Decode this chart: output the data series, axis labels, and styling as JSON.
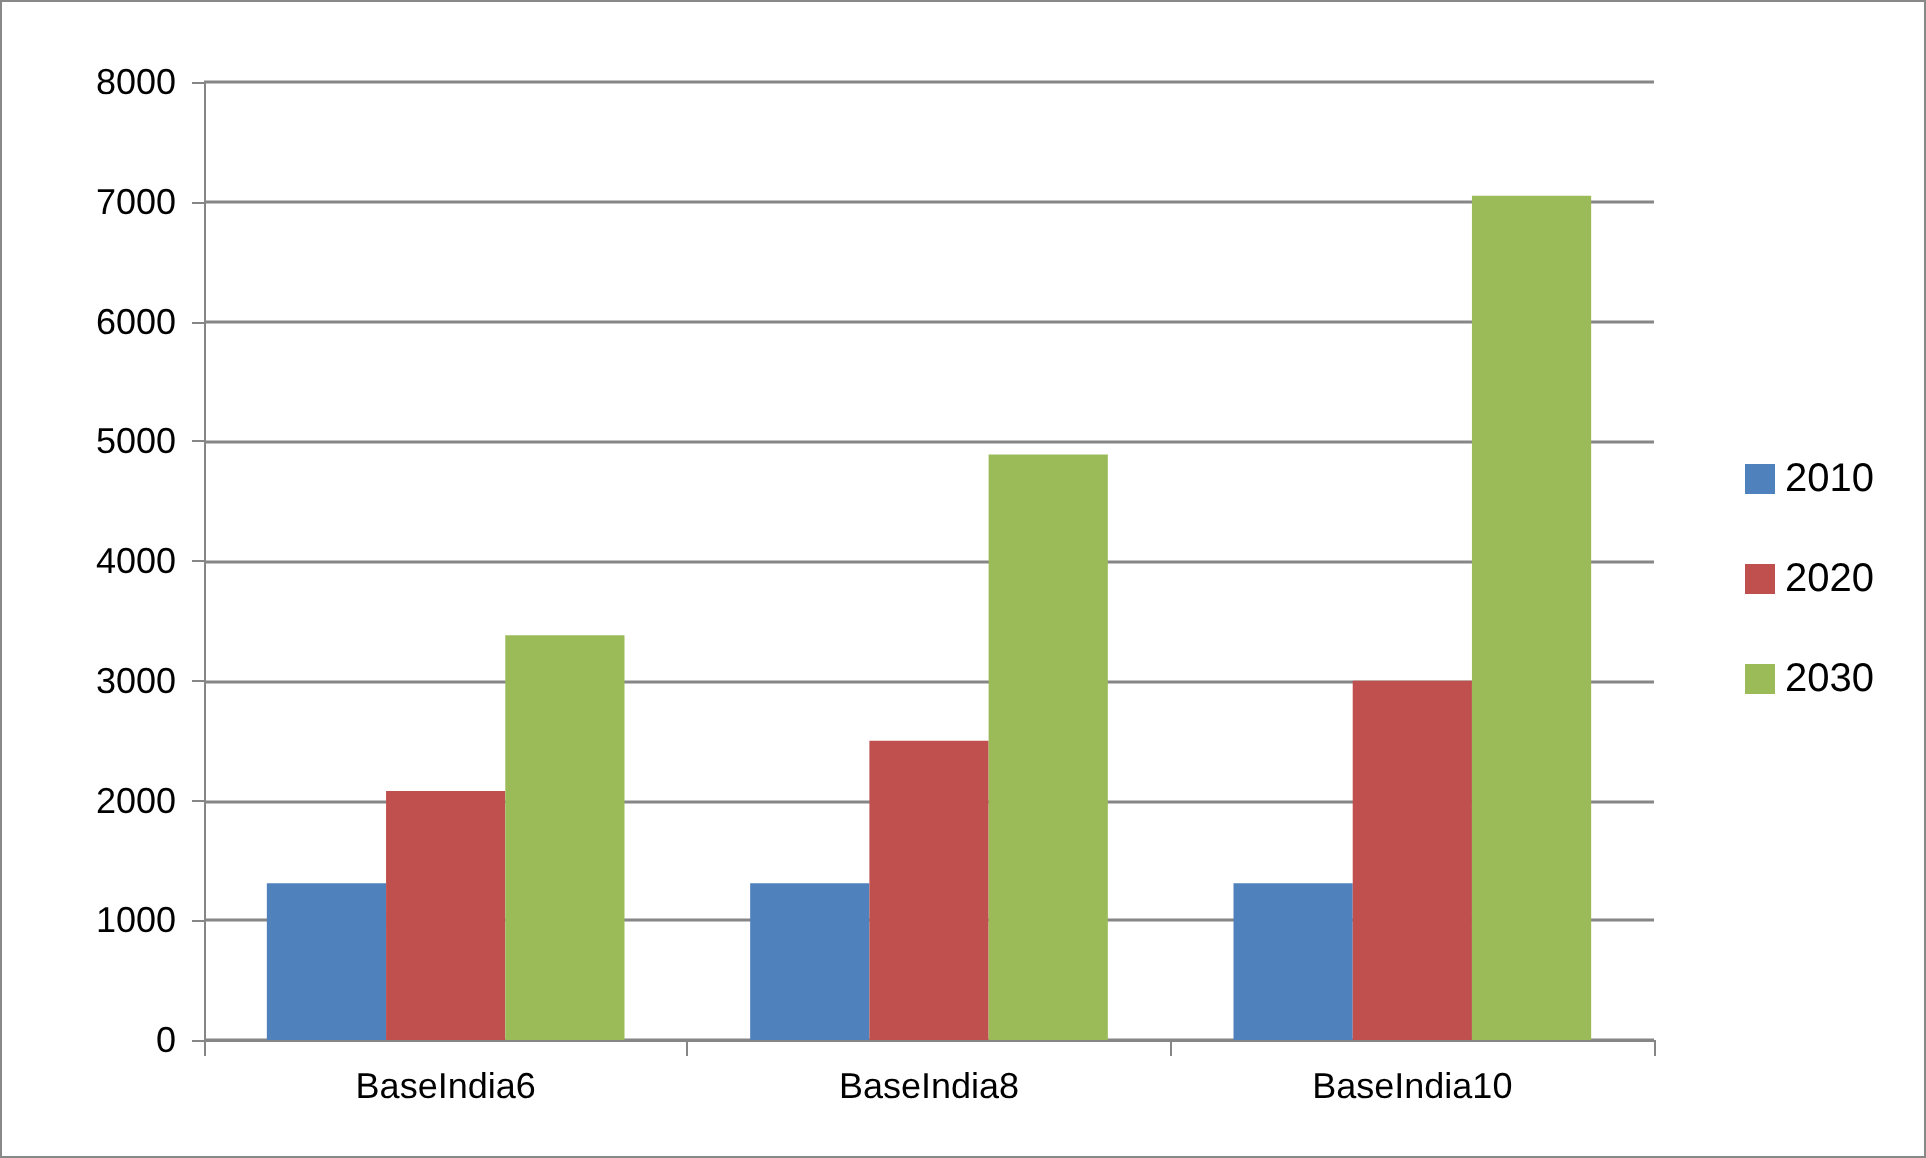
{
  "chart_data": {
    "type": "bar",
    "categories": [
      "BaseIndia6",
      "BaseIndia8",
      "BaseIndia10"
    ],
    "series": [
      {
        "name": "2010",
        "color": "#4f81bd",
        "values": [
          1310,
          1310,
          1310
        ]
      },
      {
        "name": "2020",
        "color": "#c0504d",
        "values": [
          2080,
          2500,
          3000
        ]
      },
      {
        "name": "2030",
        "color": "#9bbb59",
        "values": [
          3380,
          4890,
          7050
        ]
      }
    ],
    "ylim": [
      0,
      8000
    ],
    "yticks": [
      0,
      1000,
      2000,
      3000,
      4000,
      5000,
      6000,
      7000,
      8000
    ],
    "grid": "y",
    "legend": "right"
  }
}
